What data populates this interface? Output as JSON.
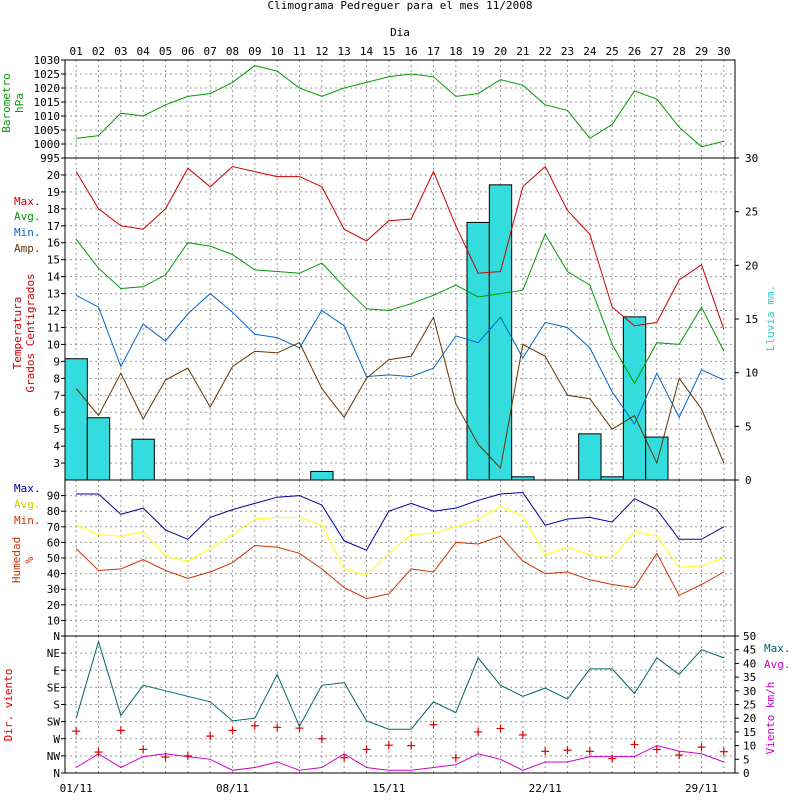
{
  "chart_data": {
    "type": "line",
    "title": "Climograma Pedreguer para el mes 11/2008",
    "top_axis_label": "Dia",
    "days": [
      "01",
      "02",
      "03",
      "04",
      "05",
      "06",
      "07",
      "08",
      "09",
      "10",
      "11",
      "12",
      "13",
      "14",
      "15",
      "16",
      "17",
      "18",
      "19",
      "20",
      "21",
      "22",
      "23",
      "24",
      "25",
      "26",
      "27",
      "28",
      "29",
      "30"
    ],
    "bottom_dates": [
      "01/11",
      "08/11",
      "15/11",
      "22/11",
      "29/11"
    ],
    "barometer": {
      "ylabel": [
        "Barometro",
        "hPa"
      ],
      "color": "#009900",
      "ylim": [
        995,
        1030
      ],
      "ticks": [
        1030,
        1025,
        1020,
        1015,
        1010,
        1005,
        1000,
        995
      ],
      "values": [
        1002,
        1003,
        1011,
        1010,
        1014,
        1017,
        1018,
        1022,
        1028,
        1026,
        1020,
        1017,
        1020,
        1022,
        1024,
        1025,
        1024,
        1017,
        1018,
        1023,
        1021,
        1014,
        1012,
        1002,
        1007,
        1019,
        1016,
        1006,
        999,
        1001
      ]
    },
    "temperature": {
      "ylabel": [
        "Temperatura",
        "Grados Centigrados"
      ],
      "ylabel_color": "#cc0000",
      "ylim": [
        2,
        21
      ],
      "ticks": [
        3,
        4,
        5,
        6,
        7,
        8,
        9,
        10,
        11,
        12,
        13,
        14,
        15,
        16,
        17,
        18,
        19,
        20
      ],
      "legend": [
        "Max.",
        "Avg.",
        "Min.",
        "Amp."
      ],
      "series": [
        {
          "name": "Max.",
          "color": "#cc0000",
          "values": [
            20.2,
            18.0,
            17.0,
            16.8,
            18.0,
            20.4,
            19.3,
            20.5,
            20.2,
            19.9,
            19.9,
            19.3,
            16.8,
            16.1,
            17.3,
            17.4,
            20.2,
            17.0,
            14.2,
            14.3,
            19.3,
            20.5,
            17.9,
            16.5,
            12.2,
            11.1,
            11.3,
            13.8,
            14.7,
            10.9
          ]
        },
        {
          "name": "Avg.",
          "color": "#009900",
          "values": [
            16.2,
            14.5,
            13.3,
            13.4,
            14.1,
            16.0,
            15.8,
            15.3,
            14.4,
            14.3,
            14.2,
            14.8,
            13.4,
            12.1,
            12.0,
            12.4,
            12.9,
            13.5,
            12.8,
            13.0,
            13.2,
            16.5,
            14.3,
            13.5,
            10.0,
            7.7,
            10.1,
            10.0,
            12.2,
            9.6
          ]
        },
        {
          "name": "Min.",
          "color": "#0066cc",
          "values": [
            12.9,
            12.2,
            8.7,
            11.2,
            10.2,
            11.8,
            13.0,
            11.9,
            10.6,
            10.4,
            9.8,
            12.0,
            11.1,
            8.1,
            8.2,
            8.1,
            8.6,
            10.5,
            10.1,
            11.6,
            9.2,
            11.3,
            11.0,
            9.8,
            7.2,
            5.3,
            8.3,
            5.7,
            8.5,
            7.9
          ]
        },
        {
          "name": "Amp.",
          "color": "#663300",
          "values": [
            7.4,
            5.8,
            8.3,
            5.6,
            7.9,
            8.6,
            6.3,
            8.7,
            9.6,
            9.5,
            10.1,
            7.4,
            5.7,
            8.0,
            9.1,
            9.3,
            11.6,
            6.5,
            4.1,
            2.7,
            10.0,
            9.3,
            7.0,
            6.8,
            5.0,
            5.8,
            3.0,
            8.0,
            6.2,
            3.0
          ]
        }
      ],
      "rain": {
        "ylabel": "Lluvia mm.",
        "color": "#33dddd",
        "ylim": [
          0,
          30
        ],
        "ticks": [
          0,
          5,
          10,
          15,
          20,
          25,
          30
        ],
        "values": [
          11.3,
          5.8,
          0,
          3.8,
          0,
          0,
          0,
          0,
          0,
          0,
          0,
          0.8,
          0,
          0,
          0,
          0,
          0,
          0,
          24.0,
          27.5,
          0.3,
          0,
          0,
          4.3,
          0.3,
          15.2,
          4.0,
          0,
          0,
          0
        ]
      }
    },
    "humidity": {
      "ylabel": [
        "Humedad",
        "%"
      ],
      "ylabel_color": "#cc3300",
      "ylim": [
        0,
        100
      ],
      "ticks": [
        10,
        20,
        30,
        40,
        50,
        60,
        70,
        80,
        90
      ],
      "legend": [
        "Max.",
        "Avg.",
        "Min."
      ],
      "series": [
        {
          "name": "Max.",
          "color": "#000099",
          "values": [
            91,
            91,
            78,
            82,
            68,
            62,
            76,
            81,
            85,
            89,
            90,
            84,
            61,
            55,
            80,
            85,
            80,
            82,
            87,
            91,
            92,
            71,
            75,
            76,
            73,
            88,
            81,
            62,
            62,
            70
          ]
        },
        {
          "name": "Avg.",
          "color": "#ffff00",
          "values": [
            71,
            65,
            64,
            67,
            51,
            48,
            56,
            65,
            75,
            76,
            76,
            71,
            43,
            39,
            53,
            65,
            66,
            70,
            75,
            83,
            77,
            52,
            57,
            52,
            50,
            67,
            64,
            44,
            45,
            50
          ]
        },
        {
          "name": "Min.",
          "color": "#cc3300",
          "values": [
            56,
            42,
            43,
            49,
            42,
            37,
            41,
            47,
            58,
            57,
            53,
            43,
            31,
            24,
            27,
            43,
            41,
            60,
            59,
            64,
            48,
            40,
            41,
            36,
            33,
            31,
            53,
            26,
            33,
            41
          ]
        }
      ]
    },
    "wind": {
      "ylabel_left": "Dir. viento",
      "ylabel_right": "Viento km/h",
      "directions": [
        "N",
        "NW",
        "W",
        "SW",
        "S",
        "SE",
        "E",
        "NE",
        "N"
      ],
      "speed_ticks": [
        0,
        5,
        10,
        15,
        20,
        25,
        30,
        35,
        40,
        45,
        50
      ],
      "speed_ylim": [
        0,
        50
      ],
      "legend": [
        "Max.",
        "Avg."
      ],
      "series": [
        {
          "name": "Max.",
          "color": "#006666",
          "values": [
            20,
            48,
            21,
            32,
            30,
            28,
            26,
            19,
            20,
            36,
            17,
            32,
            33,
            19,
            16,
            16,
            26,
            22,
            42,
            32,
            28,
            31,
            27,
            38,
            38,
            29,
            42,
            36,
            45,
            42
          ]
        },
        {
          "name": "Avg.",
          "color": "#cc00cc",
          "values": [
            2,
            7,
            2,
            6,
            7,
            6,
            5,
            1,
            2,
            4,
            1,
            2,
            7,
            2,
            1,
            1,
            2,
            3,
            7,
            5,
            1,
            4,
            4,
            6,
            6,
            6,
            10,
            8,
            7,
            4
          ]
        }
      ],
      "direction_marks": [
        250,
        305,
        248,
        298,
        318,
        315,
        263,
        248,
        236,
        240,
        242,
        270,
        320,
        298,
        287,
        288,
        233,
        320,
        252,
        243,
        260,
        303,
        300,
        303,
        322,
        285,
        298,
        313,
        292,
        304
      ],
      "direction_mark_color": "#dd0000"
    }
  }
}
